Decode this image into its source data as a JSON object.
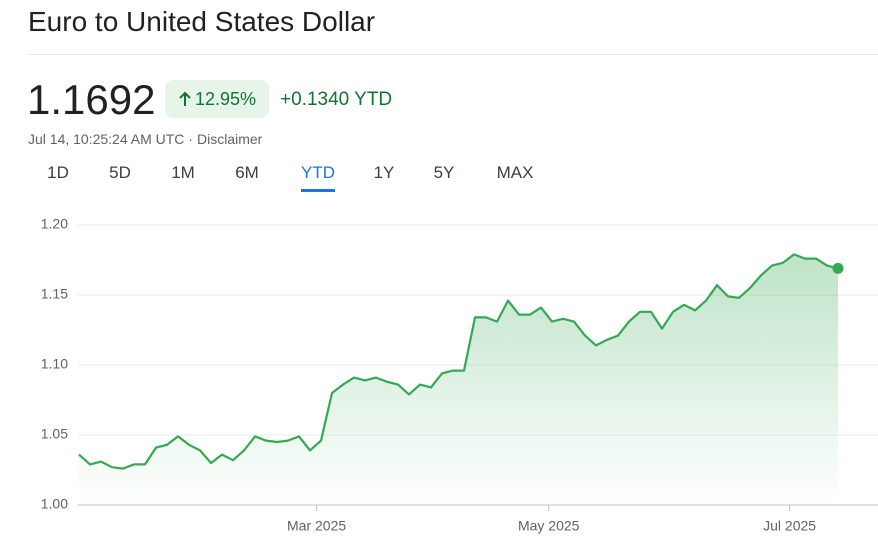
{
  "header": {
    "title": "Euro to United States Dollar",
    "price": "1.1692",
    "change_percent": "12.95%",
    "change": "+0.1340 YTD",
    "timestamp": "Jul 14, 10:25:24 AM UTC ·",
    "disclaimer": "Disclaimer"
  },
  "tabs": {
    "items": [
      "1D",
      "5D",
      "1M",
      "6M",
      "YTD",
      "1Y",
      "5Y",
      "MAX"
    ],
    "selected": "YTD"
  },
  "chart_data": {
    "type": "line",
    "x": [
      0,
      1,
      2,
      3,
      4,
      5,
      6,
      7,
      8,
      9,
      10,
      11,
      12,
      13,
      14,
      15,
      16,
      17,
      18,
      19,
      20,
      21,
      22,
      23,
      24,
      25,
      26,
      27,
      28,
      29,
      30,
      31,
      32,
      33,
      34,
      35,
      36,
      37,
      38,
      39,
      40,
      41,
      42,
      43,
      44,
      45,
      46,
      47,
      48,
      49,
      50,
      51,
      52,
      53,
      54,
      55,
      56,
      57,
      58,
      59,
      60,
      61,
      62,
      63,
      64,
      65,
      66,
      67,
      68,
      69
    ],
    "series": [
      {
        "name": "EUR/USD",
        "color": "#34a853",
        "values": [
          1.036,
          1.029,
          1.031,
          1.027,
          1.026,
          1.029,
          1.029,
          1.041,
          1.043,
          1.049,
          1.043,
          1.039,
          1.03,
          1.036,
          1.032,
          1.039,
          1.049,
          1.046,
          1.045,
          1.046,
          1.049,
          1.039,
          1.046,
          1.08,
          1.086,
          1.091,
          1.089,
          1.091,
          1.088,
          1.086,
          1.079,
          1.086,
          1.084,
          1.094,
          1.096,
          1.096,
          1.134,
          1.134,
          1.131,
          1.146,
          1.136,
          1.136,
          1.141,
          1.131,
          1.133,
          1.131,
          1.121,
          1.114,
          1.118,
          1.121,
          1.131,
          1.138,
          1.138,
          1.126,
          1.138,
          1.143,
          1.139,
          1.146,
          1.157,
          1.149,
          1.148,
          1.155,
          1.164,
          1.171,
          1.173,
          1.179,
          1.176,
          1.176,
          1.171,
          1.169
        ]
      }
    ],
    "xlim": [
      0,
      69
    ],
    "xticks": [
      {
        "value": 21.6,
        "label": "Mar 2025"
      },
      {
        "value": 42.7,
        "label": "May 2025"
      },
      {
        "value": 64.6,
        "label": "Jul 2025"
      }
    ],
    "ylim": [
      1.0,
      1.2
    ],
    "yticks": [
      {
        "value": 1.0,
        "label": "1.00"
      },
      1.05,
      {
        "value": 1.1,
        "label": "1.10"
      },
      1.15,
      {
        "value": 1.2,
        "label": "1.20"
      }
    ],
    "grid": true
  }
}
